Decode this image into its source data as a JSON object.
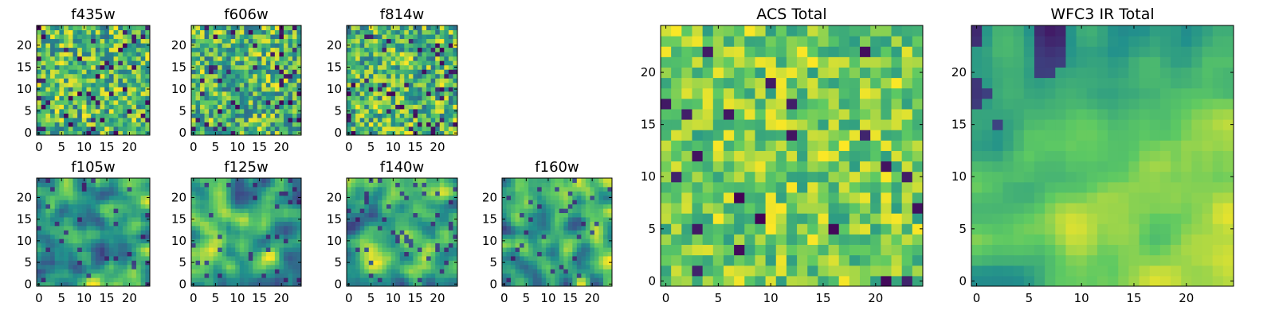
{
  "figure": {
    "colormap": [
      "#440154",
      "#3b528b",
      "#21908c",
      "#5dc963",
      "#fde725"
    ]
  },
  "chart_data": [
    {
      "type": "heatmap",
      "title": "f435w",
      "grid_size": 25,
      "xticks": [
        "0",
        "5",
        "10",
        "15",
        "20"
      ],
      "yticks": [
        "0",
        "5",
        "10",
        "15",
        "20"
      ],
      "xlim": [
        0,
        25
      ],
      "ylim": [
        0,
        25
      ],
      "value_range": [
        0,
        1
      ],
      "pattern": "noise",
      "seed": 11
    },
    {
      "type": "heatmap",
      "title": "f606w",
      "grid_size": 25,
      "xticks": [
        "0",
        "5",
        "10",
        "15",
        "20"
      ],
      "yticks": [
        "0",
        "5",
        "10",
        "15",
        "20"
      ],
      "xlim": [
        0,
        25
      ],
      "ylim": [
        0,
        25
      ],
      "value_range": [
        0,
        1
      ],
      "pattern": "noise",
      "seed": 23
    },
    {
      "type": "heatmap",
      "title": "f814w",
      "grid_size": 25,
      "xticks": [
        "0",
        "5",
        "10",
        "15",
        "20"
      ],
      "yticks": [
        "0",
        "5",
        "10",
        "15",
        "20"
      ],
      "xlim": [
        0,
        25
      ],
      "ylim": [
        0,
        25
      ],
      "value_range": [
        0,
        1
      ],
      "pattern": "noise",
      "seed": 37
    },
    {
      "type": "heatmap",
      "title": "f105w",
      "grid_size": 25,
      "xticks": [
        "0",
        "5",
        "10",
        "15",
        "20"
      ],
      "yticks": [
        "0",
        "5",
        "10",
        "15",
        "20"
      ],
      "xlim": [
        0,
        25
      ],
      "ylim": [
        0,
        25
      ],
      "value_range": [
        0,
        1
      ],
      "pattern": "smooth",
      "seed": 41
    },
    {
      "type": "heatmap",
      "title": "f125w",
      "grid_size": 25,
      "xticks": [
        "0",
        "5",
        "10",
        "15",
        "20"
      ],
      "yticks": [
        "0",
        "5",
        "10",
        "15",
        "20"
      ],
      "xlim": [
        0,
        25
      ],
      "ylim": [
        0,
        25
      ],
      "value_range": [
        0,
        1
      ],
      "pattern": "smooth",
      "seed": 53
    },
    {
      "type": "heatmap",
      "title": "f140w",
      "grid_size": 25,
      "xticks": [
        "0",
        "5",
        "10",
        "15",
        "20"
      ],
      "yticks": [
        "0",
        "5",
        "10",
        "15",
        "20"
      ],
      "xlim": [
        0,
        25
      ],
      "ylim": [
        0,
        25
      ],
      "value_range": [
        0,
        1
      ],
      "pattern": "smooth",
      "seed": 67
    },
    {
      "type": "heatmap",
      "title": "f160w",
      "grid_size": 25,
      "xticks": [
        "0",
        "5",
        "10",
        "15",
        "20"
      ],
      "yticks": [
        "0",
        "5",
        "10",
        "15",
        "20"
      ],
      "xlim": [
        0,
        25
      ],
      "ylim": [
        0,
        25
      ],
      "value_range": [
        0,
        1
      ],
      "pattern": "smooth",
      "seed": 79
    },
    {
      "type": "heatmap",
      "title": "ACS Total",
      "grid_size": 25,
      "xticks": [
        "0",
        "5",
        "10",
        "15",
        "20"
      ],
      "yticks": [
        "0",
        "5",
        "10",
        "15",
        "20"
      ],
      "xlim": [
        0,
        25
      ],
      "ylim": [
        0,
        25
      ],
      "value_range": [
        0,
        1
      ],
      "pattern": "noise-high",
      "seed": 83
    },
    {
      "type": "heatmap",
      "title": "WFC3 IR Total",
      "grid_size": 25,
      "xticks": [
        "0",
        "5",
        "10",
        "15",
        "20"
      ],
      "yticks": [
        "0",
        "5",
        "10",
        "15",
        "20"
      ],
      "xlim": [
        0,
        25
      ],
      "ylim": [
        0,
        25
      ],
      "value_range": [
        0,
        1
      ],
      "pattern": "smooth-wfc3",
      "seed": 97
    }
  ]
}
